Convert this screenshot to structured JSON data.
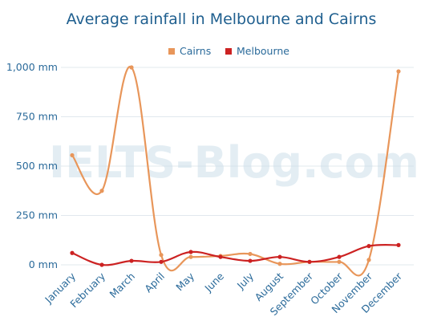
{
  "watermark": "IELTS-Blog.com",
  "chart_data": {
    "type": "line",
    "title": "Average rainfall in Melbourne and Cairns",
    "xlabel": "",
    "ylabel": "",
    "categories": [
      "January",
      "February",
      "March",
      "April",
      "May",
      "June",
      "July",
      "August",
      "September",
      "October",
      "November",
      "December"
    ],
    "y_tick_labels": [
      "0 mm",
      "250 mm",
      "500 mm",
      "750 mm",
      "1,000 mm"
    ],
    "y_tick_values": [
      0,
      250,
      500,
      750,
      1000
    ],
    "ylim": [
      0,
      1000
    ],
    "grid": true,
    "legend_position": "top",
    "series": [
      {
        "name": "Cairns",
        "color": "#e8965a",
        "values": [
          555,
          375,
          1000,
          50,
          40,
          45,
          55,
          5,
          15,
          15,
          25,
          980
        ]
      },
      {
        "name": "Melbourne",
        "color": "#cc2222",
        "values": [
          60,
          0,
          20,
          15,
          65,
          40,
          20,
          40,
          15,
          40,
          95,
          100
        ]
      }
    ]
  }
}
